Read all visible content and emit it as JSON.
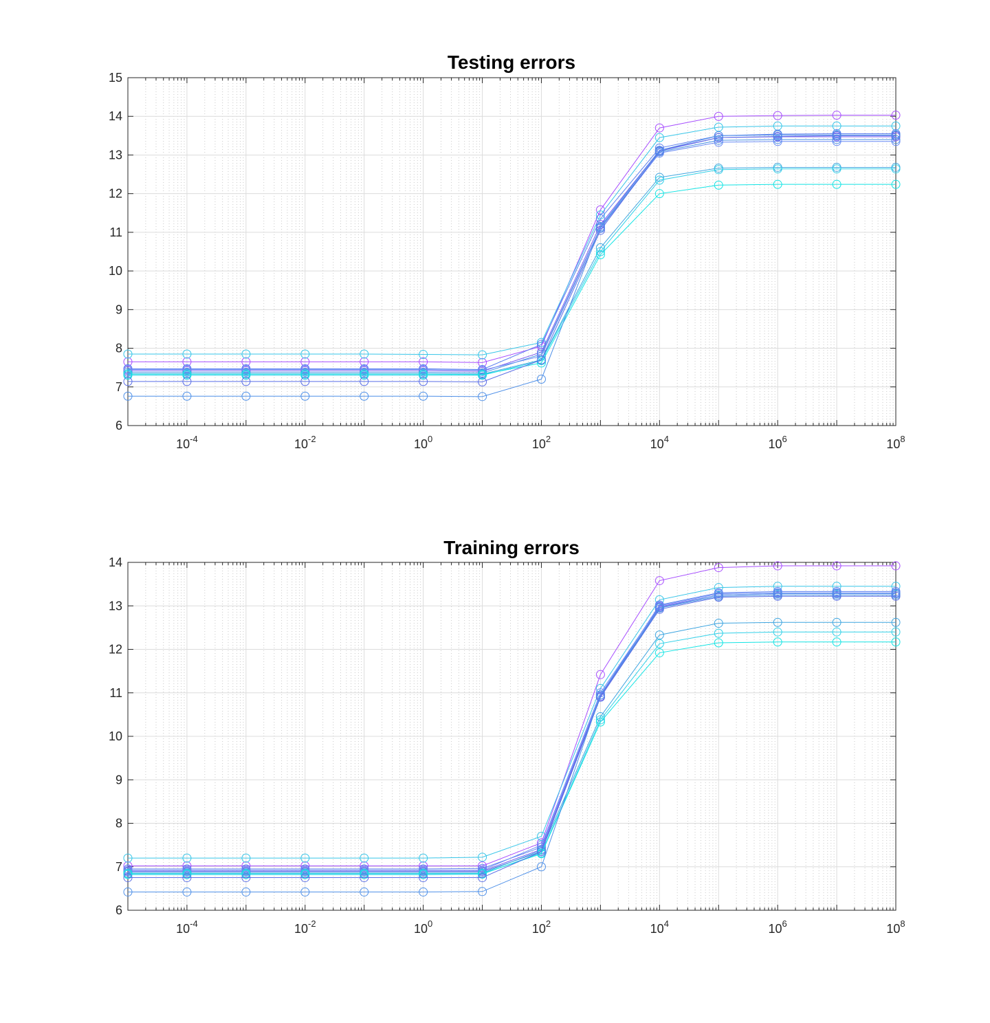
{
  "chart_data": [
    {
      "type": "line",
      "title": "Testing errors",
      "xlabel": "",
      "ylabel": "",
      "xscale": "log",
      "xlim": [
        1e-05,
        100000000
      ],
      "ylim": [
        6,
        15
      ],
      "yticks": [
        6,
        7,
        8,
        9,
        10,
        11,
        12,
        13,
        14,
        15
      ],
      "xticks": [
        {
          "value": 0.0001,
          "base": "10",
          "exp": "-4"
        },
        {
          "value": 0.01,
          "base": "10",
          "exp": "-2"
        },
        {
          "value": 1,
          "base": "10",
          "exp": "0"
        },
        {
          "value": 100,
          "base": "10",
          "exp": "2"
        },
        {
          "value": 10000,
          "base": "10",
          "exp": "4"
        },
        {
          "value": 1000000,
          "base": "10",
          "exp": "6"
        },
        {
          "value": 100000000,
          "base": "10",
          "exp": "8"
        }
      ],
      "grid": true,
      "marker": "circle",
      "x": [
        1e-05,
        0.0001,
        0.001,
        0.01,
        0.1,
        1,
        10,
        100,
        1000,
        10000,
        100000,
        1000000,
        10000000,
        100000000
      ],
      "series": [
        {
          "color": "#a64dff",
          "values": [
            7.65,
            7.65,
            7.65,
            7.65,
            7.65,
            7.65,
            7.63,
            8.05,
            11.58,
            13.7,
            14.0,
            14.02,
            14.03,
            14.03
          ]
        },
        {
          "color": "#36c5e8",
          "values": [
            7.85,
            7.85,
            7.85,
            7.85,
            7.85,
            7.84,
            7.83,
            8.15,
            11.45,
            13.45,
            13.72,
            13.75,
            13.75,
            13.75
          ]
        },
        {
          "color": "#5b7ff0",
          "values": [
            7.47,
            7.47,
            7.47,
            7.47,
            7.47,
            7.47,
            7.45,
            8.1,
            11.35,
            13.18,
            13.5,
            13.54,
            13.55,
            13.55
          ]
        },
        {
          "color": "#7a5cf0",
          "values": [
            7.42,
            7.42,
            7.42,
            7.42,
            7.42,
            7.42,
            7.4,
            7.9,
            11.2,
            13.12,
            13.45,
            13.47,
            13.47,
            13.47
          ]
        },
        {
          "color": "#4a90e2",
          "values": [
            7.38,
            7.38,
            7.38,
            7.38,
            7.38,
            7.38,
            7.36,
            7.85,
            11.12,
            13.08,
            13.38,
            13.4,
            13.4,
            13.4
          ]
        },
        {
          "color": "#6a8cf5",
          "values": [
            7.45,
            7.45,
            7.45,
            7.45,
            7.45,
            7.45,
            7.43,
            7.8,
            11.1,
            13.05,
            13.33,
            13.35,
            13.35,
            13.35
          ]
        },
        {
          "color": "#3da5e0",
          "values": [
            7.34,
            7.34,
            7.34,
            7.34,
            7.34,
            7.34,
            7.33,
            7.7,
            10.6,
            12.42,
            12.66,
            12.68,
            12.68,
            12.68
          ]
        },
        {
          "color": "#2fd0e8",
          "values": [
            7.3,
            7.3,
            7.3,
            7.3,
            7.3,
            7.3,
            7.3,
            7.68,
            10.5,
            12.35,
            12.62,
            12.64,
            12.64,
            12.64
          ]
        },
        {
          "color": "#12e4e4",
          "values": [
            7.33,
            7.33,
            7.33,
            7.33,
            7.33,
            7.33,
            7.32,
            7.62,
            10.42,
            12.0,
            12.22,
            12.24,
            12.24,
            12.24
          ]
        },
        {
          "color": "#5a6ee6",
          "values": [
            7.14,
            7.14,
            7.14,
            7.14,
            7.14,
            7.14,
            7.13,
            7.7,
            11.05,
            13.1,
            13.45,
            13.48,
            13.5,
            13.5
          ]
        },
        {
          "color": "#4d8fe8",
          "values": [
            6.76,
            6.76,
            6.76,
            6.76,
            6.76,
            6.76,
            6.75,
            7.2,
            11.15,
            13.12,
            13.5,
            13.52,
            13.52,
            13.52
          ]
        }
      ]
    },
    {
      "type": "line",
      "title": "Training errors",
      "xlabel": "",
      "ylabel": "",
      "xscale": "log",
      "xlim": [
        1e-05,
        100000000
      ],
      "ylim": [
        6,
        14
      ],
      "yticks": [
        6,
        7,
        8,
        9,
        10,
        11,
        12,
        13,
        14
      ],
      "xticks": [
        {
          "value": 0.0001,
          "base": "10",
          "exp": "-4"
        },
        {
          "value": 0.01,
          "base": "10",
          "exp": "-2"
        },
        {
          "value": 1,
          "base": "10",
          "exp": "0"
        },
        {
          "value": 100,
          "base": "10",
          "exp": "2"
        },
        {
          "value": 10000,
          "base": "10",
          "exp": "4"
        },
        {
          "value": 1000000,
          "base": "10",
          "exp": "6"
        },
        {
          "value": 100000000,
          "base": "10",
          "exp": "8"
        }
      ],
      "grid": true,
      "marker": "circle",
      "x": [
        1e-05,
        0.0001,
        0.001,
        0.01,
        0.1,
        1,
        10,
        100,
        1000,
        10000,
        100000,
        1000000,
        10000000,
        100000000
      ],
      "series": [
        {
          "color": "#a64dff",
          "values": [
            7.02,
            7.02,
            7.02,
            7.02,
            7.02,
            7.02,
            7.02,
            7.55,
            11.42,
            13.58,
            13.88,
            13.92,
            13.92,
            13.92
          ]
        },
        {
          "color": "#36c5e8",
          "values": [
            7.2,
            7.2,
            7.2,
            7.2,
            7.2,
            7.2,
            7.22,
            7.7,
            11.1,
            13.14,
            13.42,
            13.45,
            13.45,
            13.45
          ]
        },
        {
          "color": "#5b7ff0",
          "values": [
            6.95,
            6.95,
            6.95,
            6.95,
            6.95,
            6.95,
            6.96,
            7.45,
            10.95,
            13.02,
            13.3,
            13.33,
            13.33,
            13.33
          ]
        },
        {
          "color": "#7a5cf0",
          "values": [
            6.9,
            6.9,
            6.9,
            6.9,
            6.9,
            6.9,
            6.9,
            7.4,
            10.92,
            12.98,
            13.25,
            13.28,
            13.28,
            13.28
          ]
        },
        {
          "color": "#4a90e2",
          "values": [
            6.88,
            6.88,
            6.88,
            6.88,
            6.88,
            6.88,
            6.88,
            7.35,
            10.9,
            12.95,
            13.22,
            13.25,
            13.25,
            13.25
          ]
        },
        {
          "color": "#6a8cf5",
          "values": [
            6.92,
            6.92,
            6.92,
            6.92,
            6.92,
            6.92,
            6.92,
            7.5,
            11.0,
            13.0,
            13.28,
            13.3,
            13.3,
            13.3
          ]
        },
        {
          "color": "#3da5e0",
          "values": [
            6.85,
            6.85,
            6.85,
            6.85,
            6.85,
            6.85,
            6.85,
            7.38,
            10.45,
            12.33,
            12.6,
            12.62,
            12.62,
            12.62
          ]
        },
        {
          "color": "#2fd0e8",
          "values": [
            6.82,
            6.82,
            6.82,
            6.82,
            6.82,
            6.82,
            6.83,
            7.32,
            10.38,
            12.13,
            12.37,
            12.4,
            12.4,
            12.4
          ]
        },
        {
          "color": "#12e4e4",
          "values": [
            6.84,
            6.84,
            6.84,
            6.84,
            6.84,
            6.84,
            6.84,
            7.3,
            10.33,
            11.92,
            12.15,
            12.17,
            12.17,
            12.17
          ]
        },
        {
          "color": "#5a6ee6",
          "values": [
            6.75,
            6.75,
            6.75,
            6.75,
            6.75,
            6.75,
            6.75,
            7.35,
            10.9,
            12.92,
            13.2,
            13.22,
            13.22,
            13.22
          ]
        },
        {
          "color": "#4d8fe8",
          "values": [
            6.42,
            6.42,
            6.42,
            6.42,
            6.42,
            6.42,
            6.43,
            7.0,
            10.95,
            12.96,
            13.25,
            13.28,
            13.28,
            13.28
          ]
        }
      ]
    }
  ]
}
